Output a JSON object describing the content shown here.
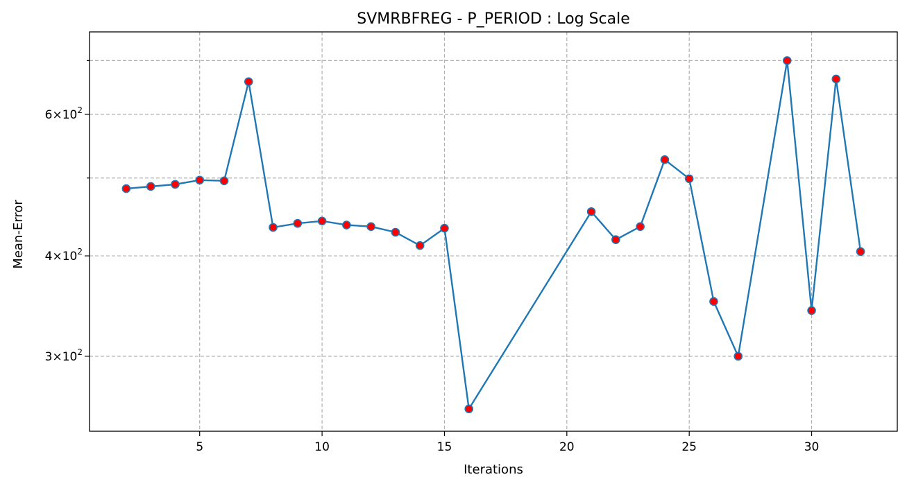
{
  "chart_data": {
    "type": "line",
    "title": "SVMRBFREG - P_PERIOD : Log Scale",
    "xlabel": "Iterations",
    "ylabel": "Mean-Error",
    "yscale": "log",
    "grid": true,
    "xlim": [
      0.5,
      33.5
    ],
    "ylim": [
      242,
      760
    ],
    "xticks": [
      5,
      10,
      15,
      20,
      25,
      30
    ],
    "xtick_labels": [
      "5",
      "10",
      "15",
      "20",
      "25",
      "30"
    ],
    "yticks_major": [
      300,
      400,
      600
    ],
    "ytick_label_base": "10",
    "ytick_label_exponent": "2",
    "ytick_label_mantissas": [
      "3",
      "4",
      "6"
    ],
    "yticks_minor": [
      500,
      700
    ],
    "series": [
      {
        "color": "#1f77b4",
        "marker_color": "#ff0000",
        "x": [
          2,
          3,
          4,
          5,
          6,
          7,
          8,
          9,
          10,
          11,
          12,
          13,
          14,
          15,
          16,
          21,
          22,
          23,
          24,
          25,
          26,
          27,
          29,
          30,
          31,
          32
        ],
        "y": [
          485,
          488,
          491,
          497,
          496,
          659,
          434,
          439,
          442,
          437,
          435,
          428,
          412,
          433,
          258,
          454,
          419,
          435,
          527,
          499,
          351,
          300,
          700,
          342,
          664,
          405
        ]
      }
    ]
  }
}
